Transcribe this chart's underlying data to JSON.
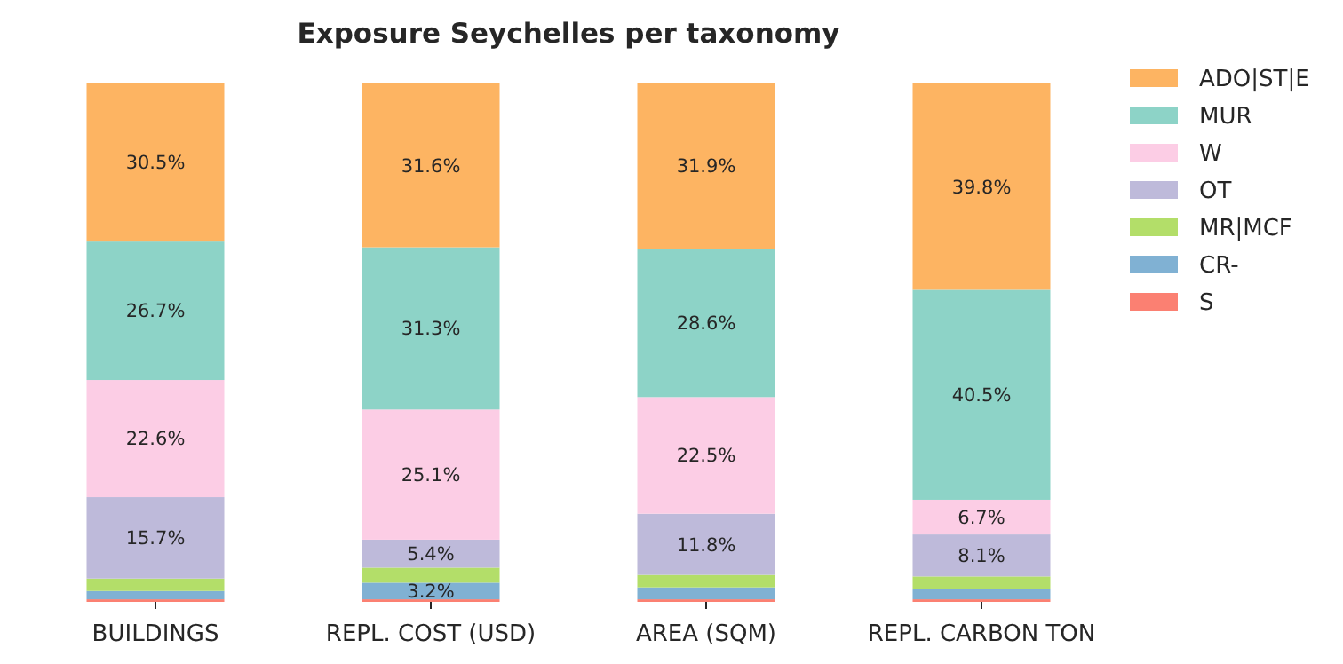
{
  "chart_data": {
    "type": "bar",
    "stacked": true,
    "title": "Exposure Seychelles per taxonomy",
    "categories": [
      "BUILDINGS",
      "REPL. COST (USD)",
      "AREA (SQM)",
      "REPL. CARBON TON"
    ],
    "legend": "right",
    "series": [
      {
        "name": "S",
        "color": "#fb8072",
        "values": [
          0.5,
          0.5,
          0.5,
          0.5
        ],
        "value_labels": [
          null,
          null,
          null,
          null
        ]
      },
      {
        "name": "CR-",
        "color": "#80b1d3",
        "values": [
          1.6,
          3.2,
          2.3,
          2.0
        ],
        "value_labels": [
          null,
          "3.2%",
          null,
          null
        ]
      },
      {
        "name": "MR|MCF",
        "color": "#b3de69",
        "values": [
          2.4,
          2.9,
          2.4,
          2.4
        ],
        "value_labels": [
          null,
          null,
          null,
          null
        ]
      },
      {
        "name": "OT",
        "color": "#bebada",
        "values": [
          15.7,
          5.4,
          11.8,
          8.1
        ],
        "value_labels": [
          "15.7%",
          "5.4%",
          "11.8%",
          "8.1%"
        ]
      },
      {
        "name": "W",
        "color": "#fccde5",
        "values": [
          22.6,
          25.1,
          22.5,
          6.7
        ],
        "value_labels": [
          "22.6%",
          "25.1%",
          "22.5%",
          "6.7%"
        ]
      },
      {
        "name": "MUR",
        "color": "#8dd3c7",
        "values": [
          26.7,
          31.3,
          28.6,
          40.5
        ],
        "value_labels": [
          "26.7%",
          "31.3%",
          "28.6%",
          "40.5%"
        ]
      },
      {
        "name": "ADO|ST|E",
        "color": "#fdb462",
        "values": [
          30.5,
          31.6,
          31.9,
          39.8
        ],
        "value_labels": [
          "30.5%",
          "31.6%",
          "31.9%",
          "39.8%"
        ]
      }
    ]
  }
}
